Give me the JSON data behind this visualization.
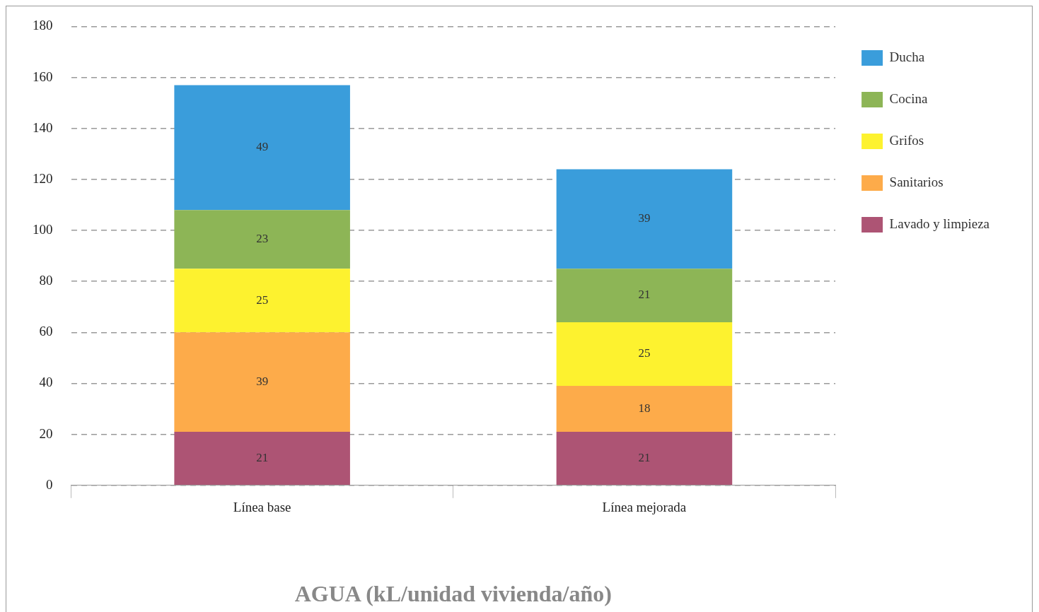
{
  "chart_data": {
    "type": "bar",
    "xlabel": "AGUA (kL/unidad vivienda/año)",
    "categories": [
      "Línea base",
      "Línea mejorada"
    ],
    "stacked": true,
    "series": [
      {
        "name": "Lavado y limpieza",
        "color": "#ad5474",
        "values": [
          21,
          21
        ]
      },
      {
        "name": "Sanitarios",
        "color": "#fdab4a",
        "values": [
          39,
          18
        ]
      },
      {
        "name": "Grifos",
        "color": "#fdf22f",
        "values": [
          25,
          25
        ]
      },
      {
        "name": "Cocina",
        "color": "#8db556",
        "values": [
          23,
          21
        ]
      },
      {
        "name": "Ducha",
        "color": "#3a9ddb",
        "values": [
          49,
          39
        ]
      }
    ],
    "ylim": [
      0,
      180
    ],
    "yticks": [
      0,
      20,
      40,
      60,
      80,
      100,
      120,
      140,
      160,
      180
    ],
    "grid": "y",
    "line_style": "dashed",
    "legend": "right",
    "data_labels": true
  }
}
